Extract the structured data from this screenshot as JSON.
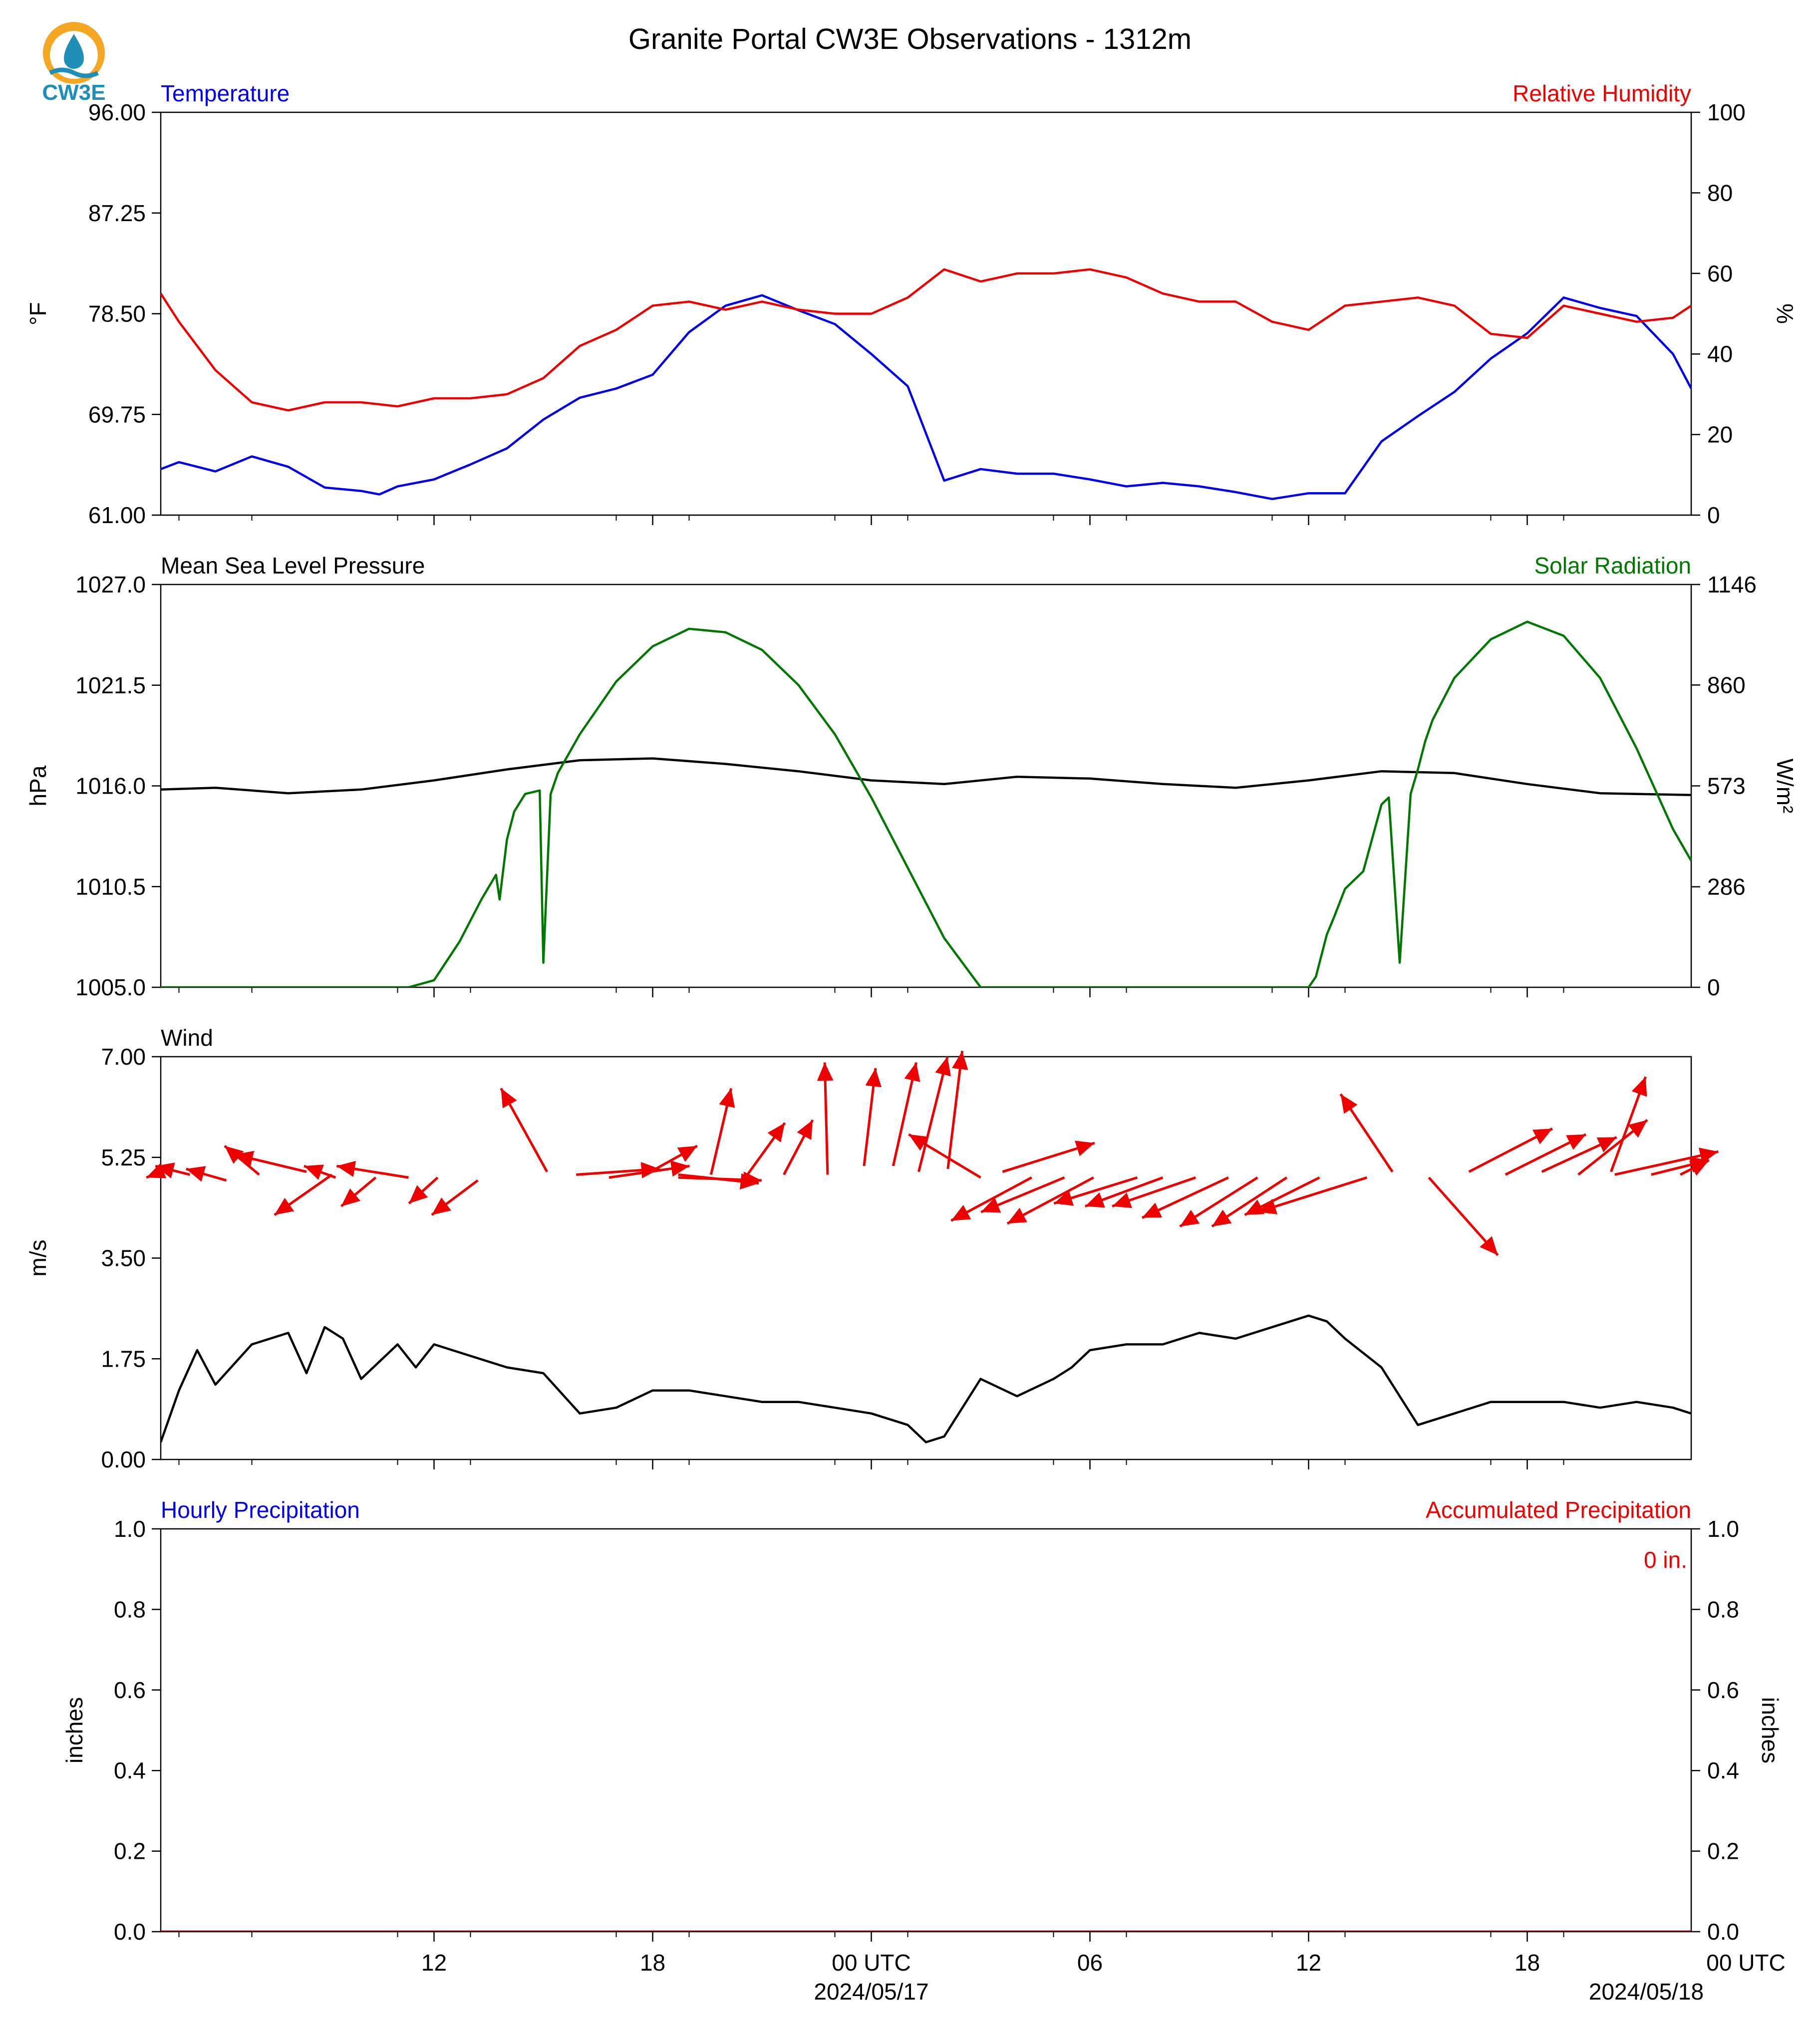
{
  "title": "Granite Portal CW3E Observations - 1312m",
  "logo": {
    "text": "CW3E",
    "icon": "cw3e-drop-logo",
    "colors": {
      "ring": "#f5a623",
      "drop": "#1f8fb8",
      "text": "#1f8fb8"
    }
  },
  "colors": {
    "blue": "#0000ee",
    "red": "#ee0000",
    "green": "#007700",
    "black": "#000000"
  },
  "time_axis": {
    "start_hour": 4.5,
    "end_hour": 46.5,
    "major_ticks": [
      {
        "hour": 12,
        "label": "12"
      },
      {
        "hour": 18,
        "label": "18"
      },
      {
        "hour": 24,
        "label": "00 UTC",
        "date": "2024/05/17"
      },
      {
        "hour": 30,
        "label": "06"
      },
      {
        "hour": 36,
        "label": "12"
      },
      {
        "hour": 42,
        "label": "18"
      },
      {
        "hour": 48,
        "label": "00 UTC",
        "date": "2024/05/18"
      }
    ],
    "minor_ticks": [
      5,
      7,
      11,
      13,
      17,
      19,
      23,
      25,
      29,
      31,
      35,
      37,
      41,
      43,
      47
    ]
  },
  "chart_data": [
    {
      "type": "line",
      "left_title": "Temperature",
      "right_title": "Relative Humidity",
      "ylabel": "°F",
      "ylabel_right": "%",
      "ylim": [
        61.0,
        96.0
      ],
      "ylim_right": [
        0,
        100
      ],
      "yticks": [
        "61.00",
        "69.75",
        "78.50",
        "87.25",
        "96.00"
      ],
      "yticks_right": [
        "0",
        "20",
        "40",
        "60",
        "80",
        "100"
      ],
      "series": [
        {
          "axis": "left",
          "color": "#0000ee",
          "x": [
            4.5,
            5.0,
            6.0,
            7.0,
            8.0,
            9.0,
            10.0,
            10.5,
            11.0,
            12.0,
            13.0,
            14.0,
            15.0,
            16.0,
            17.0,
            18.0,
            19.0,
            20.0,
            21.0,
            22.0,
            23.0,
            24.0,
            25.0,
            26.0,
            27.0,
            28.0,
            29.0,
            30.0,
            31.0,
            32.0,
            33.0,
            34.0,
            35.0,
            36.0,
            37.0,
            38.0,
            39.0,
            40.0,
            41.0,
            42.0,
            43.0,
            44.0,
            45.0,
            46.0,
            46.5
          ],
          "y": [
            65.0,
            65.6,
            64.8,
            66.1,
            65.2,
            63.4,
            63.1,
            62.8,
            63.5,
            64.1,
            65.4,
            66.8,
            69.3,
            71.2,
            72.0,
            73.2,
            76.9,
            79.2,
            80.1,
            78.8,
            77.6,
            75.0,
            72.2,
            64.0,
            65.0,
            64.6,
            64.6,
            64.1,
            63.5,
            63.8,
            63.5,
            63.0,
            62.4,
            62.9,
            62.9,
            67.4,
            69.6,
            71.7,
            74.6,
            76.8,
            79.9,
            79.0,
            78.3,
            75.0,
            72.0
          ]
        },
        {
          "axis": "right",
          "color": "#ee0000",
          "x": [
            4.5,
            5.0,
            6.0,
            7.0,
            8.0,
            9.0,
            10.0,
            11.0,
            12.0,
            13.0,
            14.0,
            15.0,
            16.0,
            17.0,
            18.0,
            19.0,
            20.0,
            21.0,
            22.0,
            23.0,
            24.0,
            25.0,
            26.0,
            27.0,
            28.0,
            29.0,
            30.0,
            31.0,
            32.0,
            33.0,
            34.0,
            35.0,
            36.0,
            37.0,
            38.0,
            39.0,
            40.0,
            41.0,
            42.0,
            43.0,
            44.0,
            45.0,
            46.0,
            46.5
          ],
          "y": [
            55,
            48,
            36,
            28,
            26,
            28,
            28,
            27,
            29,
            29,
            30,
            34,
            42,
            46,
            52,
            53,
            51,
            53,
            51,
            50,
            50,
            54,
            61,
            58,
            60,
            60,
            61,
            59,
            55,
            53,
            53,
            48,
            46,
            52,
            53,
            54,
            52,
            45,
            44,
            52,
            50,
            48,
            49,
            52
          ]
        }
      ]
    },
    {
      "type": "line",
      "left_title": "Mean Sea Level Pressure",
      "right_title": "Solar Radiation",
      "ylabel": "hPa",
      "ylabel_right": "W/m²",
      "ylim": [
        1005.0,
        1027.0
      ],
      "ylim_right": [
        0,
        1146
      ],
      "yticks": [
        "1005.0",
        "1010.5",
        "1016.0",
        "1021.5",
        "1027.0"
      ],
      "yticks_right": [
        "0",
        "286",
        "573",
        "860",
        "1146"
      ],
      "series": [
        {
          "axis": "left",
          "color": "#000000",
          "x": [
            4.5,
            6.0,
            8.0,
            10.0,
            12.0,
            14.0,
            16.0,
            18.0,
            20.0,
            22.0,
            24.0,
            26.0,
            28.0,
            30.0,
            32.0,
            34.0,
            36.0,
            38.0,
            40.0,
            42.0,
            44.0,
            46.5
          ],
          "y": [
            1015.8,
            1015.9,
            1015.6,
            1015.8,
            1016.3,
            1016.9,
            1017.4,
            1017.5,
            1017.2,
            1016.8,
            1016.3,
            1016.1,
            1016.5,
            1016.4,
            1016.1,
            1015.9,
            1016.3,
            1016.8,
            1016.7,
            1016.1,
            1015.6,
            1015.5
          ]
        },
        {
          "axis": "right",
          "color": "#007700",
          "x": [
            4.5,
            10.0,
            11.0,
            11.3,
            12.0,
            12.7,
            13.3,
            13.7,
            13.8,
            14.0,
            14.2,
            14.5,
            14.9,
            15.0,
            15.2,
            15.4,
            16.0,
            17.0,
            18.0,
            19.0,
            20.0,
            21.0,
            22.0,
            23.0,
            24.0,
            25.0,
            26.0,
            27.0,
            28.0,
            29.0,
            30.0,
            31.0,
            32.0,
            33.0,
            34.0,
            34.5,
            35.5,
            35.8,
            36.0,
            36.2,
            36.5,
            36.7,
            37.0,
            37.5,
            38.0,
            38.2,
            38.5,
            38.8,
            39.0,
            39.2,
            39.4,
            40.0,
            41.0,
            42.0,
            43.0,
            44.0,
            45.0,
            46.0,
            46.5
          ],
          "y": [
            0,
            0,
            0,
            0,
            20,
            130,
            250,
            320,
            250,
            420,
            500,
            550,
            560,
            70,
            550,
            610,
            720,
            870,
            970,
            1020,
            1010,
            960,
            860,
            720,
            540,
            340,
            140,
            0,
            0,
            0,
            0,
            0,
            0,
            0,
            0,
            0,
            0,
            0,
            0,
            30,
            150,
            200,
            280,
            330,
            520,
            540,
            70,
            550,
            620,
            700,
            760,
            880,
            990,
            1040,
            1000,
            880,
            680,
            450,
            360
          ]
        }
      ]
    },
    {
      "type": "line",
      "left_title": "Wind",
      "ylabel": "m/s",
      "ylim": [
        0.0,
        7.0
      ],
      "yticks": [
        "0.00",
        "1.75",
        "3.50",
        "5.25",
        "7.00"
      ],
      "series": [
        {
          "axis": "left",
          "color": "#000000",
          "x": [
            4.5,
            5.0,
            5.5,
            6.0,
            7.0,
            8.0,
            8.5,
            9.0,
            9.5,
            10.0,
            11.0,
            11.5,
            12.0,
            13.0,
            14.0,
            15.0,
            16.0,
            17.0,
            18.0,
            19.0,
            20.0,
            21.0,
            22.0,
            23.0,
            24.0,
            25.0,
            25.5,
            26.0,
            27.0,
            28.0,
            29.0,
            29.5,
            30.0,
            31.0,
            32.0,
            33.0,
            34.0,
            35.0,
            36.0,
            36.5,
            37.0,
            38.0,
            38.5,
            39.0,
            40.0,
            41.0,
            42.0,
            43.0,
            44.0,
            45.0,
            46.0,
            46.5
          ],
          "y": [
            0.3,
            1.2,
            1.9,
            1.3,
            2.0,
            2.2,
            1.5,
            2.3,
            2.1,
            1.4,
            2.0,
            1.6,
            2.0,
            1.8,
            1.6,
            1.5,
            0.8,
            0.9,
            1.2,
            1.2,
            1.1,
            1.0,
            1.0,
            0.9,
            0.8,
            0.6,
            0.3,
            0.4,
            1.4,
            1.1,
            1.4,
            1.6,
            1.9,
            2.0,
            2.0,
            2.2,
            2.1,
            2.3,
            2.5,
            2.4,
            2.1,
            1.6,
            1.1,
            0.6,
            0.8,
            1.0,
            1.0,
            1.0,
            0.9,
            1.0,
            0.9,
            0.8
          ]
        }
      ],
      "barbs": [
        {
          "x": 4.5,
          "y": 5.0,
          "dx": -0.25,
          "dy": -0.1
        },
        {
          "x": 5.3,
          "y": 4.95,
          "dx": -0.6,
          "dy": 0.15
        },
        {
          "x": 6.3,
          "y": 4.85,
          "dx": -0.7,
          "dy": 0.2
        },
        {
          "x": 7.2,
          "y": 4.95,
          "dx": -0.6,
          "dy": 0.5
        },
        {
          "x": 8.5,
          "y": 5.0,
          "dx": -1.25,
          "dy": 0.3
        },
        {
          "x": 9.3,
          "y": 4.9,
          "dx": -0.55,
          "dy": 0.2
        },
        {
          "x": 9.2,
          "y": 4.95,
          "dx": -1.0,
          "dy": -0.7
        },
        {
          "x": 10.4,
          "y": 4.9,
          "dx": -0.6,
          "dy": -0.5
        },
        {
          "x": 11.3,
          "y": 4.9,
          "dx": -1.25,
          "dy": 0.2
        },
        {
          "x": 12.1,
          "y": 4.9,
          "dx": -0.5,
          "dy": -0.45
        },
        {
          "x": 13.2,
          "y": 4.85,
          "dx": -0.8,
          "dy": -0.6
        },
        {
          "x": 15.1,
          "y": 5.0,
          "dx": -0.8,
          "dy": 1.45
        },
        {
          "x": 15.9,
          "y": 4.95,
          "dx": 1.45,
          "dy": 0.1
        },
        {
          "x": 16.8,
          "y": 4.9,
          "dx": 1.4,
          "dy": 0.2
        },
        {
          "x": 17.8,
          "y": 4.95,
          "dx": 0.9,
          "dy": 0.5
        },
        {
          "x": 18.7,
          "y": 4.9,
          "dx": 1.45,
          "dy": -0.05
        },
        {
          "x": 18.7,
          "y": 4.95,
          "dx": 1.4,
          "dy": -0.15
        },
        {
          "x": 19.6,
          "y": 4.95,
          "dx": 0.35,
          "dy": 1.5
        },
        {
          "x": 20.6,
          "y": 4.95,
          "dx": 0.65,
          "dy": 0.9
        },
        {
          "x": 21.6,
          "y": 4.95,
          "dx": 0.5,
          "dy": 0.95
        },
        {
          "x": 22.8,
          "y": 4.95,
          "dx": -0.05,
          "dy": 1.95
        },
        {
          "x": 23.8,
          "y": 5.1,
          "dx": 0.2,
          "dy": 1.7
        },
        {
          "x": 24.6,
          "y": 5.1,
          "dx": 0.4,
          "dy": 1.8
        },
        {
          "x": 25.3,
          "y": 5.0,
          "dx": 0.5,
          "dy": 2.0
        },
        {
          "x": 26.1,
          "y": 5.05,
          "dx": 0.25,
          "dy": 2.05
        },
        {
          "x": 27.0,
          "y": 4.9,
          "dx": -1.25,
          "dy": 0.75
        },
        {
          "x": 27.6,
          "y": 5.0,
          "dx": 1.6,
          "dy": 0.5
        },
        {
          "x": 28.4,
          "y": 4.9,
          "dx": -1.4,
          "dy": -0.75
        },
        {
          "x": 29.3,
          "y": 4.9,
          "dx": -1.45,
          "dy": -0.6
        },
        {
          "x": 30.1,
          "y": 4.9,
          "dx": -1.5,
          "dy": -0.8
        },
        {
          "x": 31.3,
          "y": 4.9,
          "dx": -1.45,
          "dy": -0.45
        },
        {
          "x": 32.0,
          "y": 4.9,
          "dx": -1.35,
          "dy": -0.5
        },
        {
          "x": 32.9,
          "y": 4.9,
          "dx": -1.45,
          "dy": -0.5
        },
        {
          "x": 33.8,
          "y": 4.9,
          "dx": -1.5,
          "dy": -0.7
        },
        {
          "x": 34.6,
          "y": 4.9,
          "dx": -1.35,
          "dy": -0.85
        },
        {
          "x": 35.4,
          "y": 4.9,
          "dx": -1.3,
          "dy": -0.85
        },
        {
          "x": 36.3,
          "y": 4.9,
          "dx": -1.3,
          "dy": -0.65
        },
        {
          "x": 37.6,
          "y": 4.9,
          "dx": -1.9,
          "dy": -0.6
        },
        {
          "x": 38.3,
          "y": 5.0,
          "dx": -0.9,
          "dy": 1.35
        },
        {
          "x": 39.3,
          "y": 4.9,
          "dx": 1.2,
          "dy": -1.35
        },
        {
          "x": 40.4,
          "y": 5.0,
          "dx": 1.45,
          "dy": 0.75
        },
        {
          "x": 41.4,
          "y": 4.95,
          "dx": 1.4,
          "dy": 0.7
        },
        {
          "x": 42.4,
          "y": 5.0,
          "dx": 1.3,
          "dy": 0.6
        },
        {
          "x": 43.4,
          "y": 4.95,
          "dx": 1.2,
          "dy": 0.95
        },
        {
          "x": 44.3,
          "y": 5.0,
          "dx": 0.6,
          "dy": 1.65
        },
        {
          "x": 44.4,
          "y": 4.95,
          "dx": 1.8,
          "dy": 0.4
        },
        {
          "x": 45.4,
          "y": 4.95,
          "dx": 1.0,
          "dy": 0.25
        },
        {
          "x": 46.2,
          "y": 4.95,
          "dx": 0.5,
          "dy": 0.25
        }
      ]
    },
    {
      "type": "line",
      "left_title": "Hourly Precipitation",
      "right_title": "Accumulated Precipitation",
      "ylabel": "inches",
      "ylabel_right": "inches",
      "ylim": [
        0.0,
        1.0
      ],
      "ylim_right": [
        0.0,
        1.0
      ],
      "yticks": [
        "0.0",
        "0.2",
        "0.4",
        "0.6",
        "0.8",
        "1.0"
      ],
      "yticks_right": [
        "0.0",
        "0.2",
        "0.4",
        "0.6",
        "0.8",
        "1.0"
      ],
      "annotation": "0 in.",
      "series": [
        {
          "axis": "left",
          "color": "#0000ee",
          "x": [
            4.5,
            46.5
          ],
          "y": [
            0,
            0
          ]
        },
        {
          "axis": "right",
          "color": "#8b0000",
          "x": [
            4.5,
            46.5
          ],
          "y": [
            0,
            0
          ]
        }
      ]
    }
  ]
}
